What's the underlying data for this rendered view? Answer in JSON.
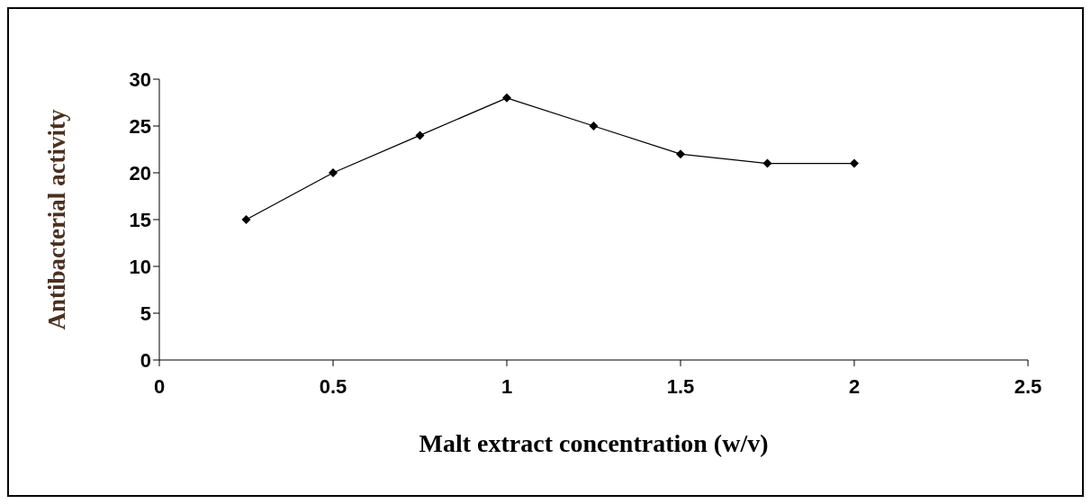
{
  "chart_data": {
    "type": "line",
    "xlabel": "Malt extract concentration (w/v)",
    "ylabel": "Antibacterial activity",
    "x": [
      0.25,
      0.5,
      0.75,
      1,
      1.25,
      1.5,
      1.75,
      2
    ],
    "series": [
      {
        "color": "#000000",
        "values": [
          15,
          20,
          24,
          28,
          25,
          22,
          21,
          21
        ]
      }
    ],
    "xlim": [
      0,
      2.5
    ],
    "xticks": [
      0,
      0.5,
      1,
      1.5,
      2,
      2.5
    ],
    "ylim": [
      0,
      30
    ],
    "yticks": [
      0,
      5,
      10,
      15,
      20,
      25,
      30
    ],
    "grid": false,
    "marker": "diamond",
    "line_style": "solid"
  }
}
